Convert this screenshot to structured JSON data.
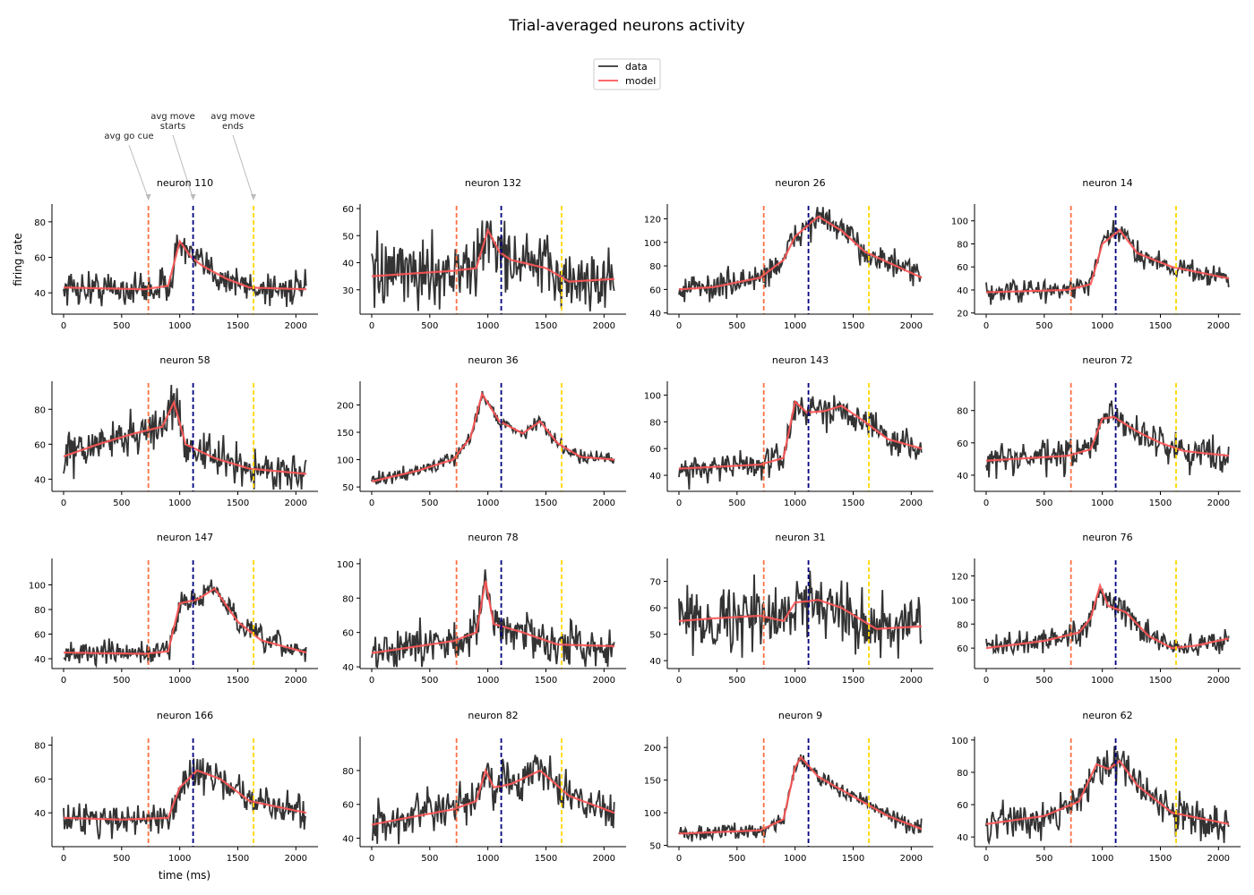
{
  "figure": {
    "title": "Trial-averaged neurons activity",
    "xlabel": "time (ms)",
    "ylabel": "firing rate",
    "legend": {
      "placement": "top-center",
      "entries": [
        {
          "label": "data",
          "color": "#333333"
        },
        {
          "label": "model",
          "color": "#ff5555"
        }
      ]
    },
    "annotations": [
      {
        "text": "avg go cue",
        "event": "go_cue"
      },
      {
        "text": "avg move\nstarts",
        "event": "move_start"
      },
      {
        "text": "avg move\nends",
        "event": "move_end"
      }
    ]
  },
  "chart_data": {
    "type": "line",
    "layout": "4x4 small multiples",
    "shared_x": {
      "label": "time (ms)",
      "range": [
        0,
        2090
      ],
      "ticks": [
        0,
        500,
        1000,
        1500,
        2000
      ]
    },
    "events": [
      {
        "name": "avg go cue",
        "x": 730,
        "color": "#ff7043",
        "style": "dashed"
      },
      {
        "name": "avg move starts",
        "x": 1115,
        "color": "#000080",
        "style": "dashed"
      },
      {
        "name": "avg move ends",
        "x": 1635,
        "color": "#ffd700",
        "style": "dashed"
      }
    ],
    "series_colors": {
      "data": "#333333",
      "model": "#ff5555"
    },
    "grid": false,
    "panels": [
      {
        "title": "neuron 110",
        "ylim": [
          28,
          89
        ],
        "yticks": [
          40,
          60,
          80
        ],
        "noise": 5,
        "model": [
          [
            0,
            43
          ],
          [
            700,
            42
          ],
          [
            900,
            44
          ],
          [
            1000,
            69
          ],
          [
            1100,
            60
          ],
          [
            1200,
            55
          ],
          [
            1400,
            48
          ],
          [
            1600,
            43
          ],
          [
            2090,
            42
          ]
        ]
      },
      {
        "title": "neuron 132",
        "ylim": [
          21,
          61
        ],
        "yticks": [
          30,
          40,
          50,
          60
        ],
        "noise": 6,
        "model": [
          [
            0,
            35
          ],
          [
            700,
            37
          ],
          [
            900,
            38
          ],
          [
            1000,
            52
          ],
          [
            1100,
            44
          ],
          [
            1200,
            41
          ],
          [
            1500,
            38
          ],
          [
            1700,
            33
          ],
          [
            2090,
            34
          ]
        ]
      },
      {
        "title": "neuron 26",
        "ylim": [
          39,
          131
        ],
        "yticks": [
          40,
          60,
          80,
          100,
          120
        ],
        "noise": 6,
        "model": [
          [
            0,
            60
          ],
          [
            300,
            62
          ],
          [
            700,
            70
          ],
          [
            900,
            85
          ],
          [
            1000,
            105
          ],
          [
            1200,
            122
          ],
          [
            1400,
            110
          ],
          [
            1600,
            92
          ],
          [
            2090,
            70
          ]
        ]
      },
      {
        "title": "neuron 14",
        "ylim": [
          19,
          113
        ],
        "yticks": [
          20,
          40,
          60,
          80,
          100
        ],
        "noise": 5,
        "model": [
          [
            0,
            38
          ],
          [
            700,
            40
          ],
          [
            900,
            45
          ],
          [
            1000,
            80
          ],
          [
            1150,
            92
          ],
          [
            1300,
            72
          ],
          [
            1600,
            60
          ],
          [
            2090,
            50
          ]
        ]
      },
      {
        "title": "neuron 58",
        "ylim": [
          33,
          95
        ],
        "yticks": [
          40,
          60,
          80
        ],
        "noise": 6,
        "model": [
          [
            0,
            53
          ],
          [
            300,
            60
          ],
          [
            600,
            66
          ],
          [
            850,
            70
          ],
          [
            950,
            84
          ],
          [
            1050,
            60
          ],
          [
            1300,
            52
          ],
          [
            1600,
            46
          ],
          [
            2090,
            43
          ]
        ]
      },
      {
        "title": "neuron 36",
        "ylim": [
          42,
          240
        ],
        "yticks": [
          50,
          100,
          150,
          200
        ],
        "noise": 6,
        "model": [
          [
            0,
            60
          ],
          [
            400,
            80
          ],
          [
            700,
            100
          ],
          [
            850,
            140
          ],
          [
            950,
            220
          ],
          [
            1100,
            170
          ],
          [
            1300,
            148
          ],
          [
            1450,
            170
          ],
          [
            1600,
            130
          ],
          [
            1800,
            105
          ],
          [
            2090,
            100
          ]
        ]
      },
      {
        "title": "neuron 143",
        "ylim": [
          28,
          109
        ],
        "yticks": [
          40,
          60,
          80,
          100
        ],
        "noise": 6,
        "model": [
          [
            0,
            45
          ],
          [
            700,
            48
          ],
          [
            900,
            53
          ],
          [
            1000,
            95
          ],
          [
            1100,
            87
          ],
          [
            1250,
            88
          ],
          [
            1400,
            92
          ],
          [
            1600,
            80
          ],
          [
            1800,
            67
          ],
          [
            2090,
            60
          ]
        ]
      },
      {
        "title": "neuron 72",
        "ylim": [
          30,
          97
        ],
        "yticks": [
          40,
          60,
          80
        ],
        "noise": 5,
        "model": [
          [
            0,
            49
          ],
          [
            700,
            52
          ],
          [
            900,
            56
          ],
          [
            1000,
            75
          ],
          [
            1100,
            76
          ],
          [
            1300,
            67
          ],
          [
            1500,
            60
          ],
          [
            1700,
            55
          ],
          [
            2090,
            52
          ]
        ]
      },
      {
        "title": "neuron 147",
        "ylim": [
          32,
          120
        ],
        "yticks": [
          40,
          60,
          80,
          100
        ],
        "noise": 5,
        "model": [
          [
            0,
            45
          ],
          [
            700,
            44
          ],
          [
            900,
            46
          ],
          [
            1000,
            85
          ],
          [
            1150,
            88
          ],
          [
            1300,
            97
          ],
          [
            1500,
            70
          ],
          [
            1700,
            55
          ],
          [
            2090,
            45
          ]
        ]
      },
      {
        "title": "neuron 78",
        "ylim": [
          39,
          102
        ],
        "yticks": [
          40,
          60,
          80,
          100
        ],
        "noise": 6,
        "model": [
          [
            0,
            48
          ],
          [
            700,
            55
          ],
          [
            900,
            60
          ],
          [
            980,
            90
          ],
          [
            1050,
            65
          ],
          [
            1300,
            60
          ],
          [
            1600,
            53
          ],
          [
            2090,
            52
          ]
        ]
      },
      {
        "title": "neuron 31",
        "ylim": [
          37,
          78
        ],
        "yticks": [
          40,
          50,
          60,
          70
        ],
        "noise": 6,
        "model": [
          [
            0,
            55
          ],
          [
            300,
            56
          ],
          [
            700,
            57
          ],
          [
            900,
            55
          ],
          [
            1000,
            62
          ],
          [
            1200,
            63
          ],
          [
            1400,
            60
          ],
          [
            1700,
            52
          ],
          [
            2090,
            53
          ]
        ]
      },
      {
        "title": "neuron 76",
        "ylim": [
          43,
          133
        ],
        "yticks": [
          60,
          80,
          100,
          120
        ],
        "noise": 5,
        "model": [
          [
            0,
            60
          ],
          [
            500,
            66
          ],
          [
            800,
            73
          ],
          [
            900,
            85
          ],
          [
            980,
            112
          ],
          [
            1050,
            95
          ],
          [
            1200,
            90
          ],
          [
            1400,
            70
          ],
          [
            1600,
            60
          ],
          [
            1800,
            62
          ],
          [
            2090,
            68
          ]
        ]
      },
      {
        "title": "neuron 166",
        "ylim": [
          20,
          84
        ],
        "yticks": [
          40,
          60,
          80
        ],
        "noise": 5,
        "model": [
          [
            0,
            37
          ],
          [
            500,
            36
          ],
          [
            900,
            37
          ],
          [
            1000,
            55
          ],
          [
            1150,
            65
          ],
          [
            1350,
            60
          ],
          [
            1600,
            47
          ],
          [
            2090,
            40
          ]
        ]
      },
      {
        "title": "neuron 82",
        "ylim": [
          35,
          99
        ],
        "yticks": [
          40,
          60,
          80
        ],
        "noise": 6,
        "model": [
          [
            0,
            48
          ],
          [
            300,
            52
          ],
          [
            700,
            57
          ],
          [
            900,
            62
          ],
          [
            980,
            80
          ],
          [
            1050,
            70
          ],
          [
            1200,
            72
          ],
          [
            1450,
            80
          ],
          [
            1700,
            65
          ],
          [
            2090,
            55
          ]
        ]
      },
      {
        "title": "neuron 9",
        "ylim": [
          48,
          214
        ],
        "yticks": [
          50,
          100,
          150,
          200
        ],
        "noise": 6,
        "model": [
          [
            0,
            68
          ],
          [
            700,
            73
          ],
          [
            900,
            90
          ],
          [
            1000,
            170
          ],
          [
            1050,
            185
          ],
          [
            1200,
            155
          ],
          [
            1500,
            125
          ],
          [
            1800,
            95
          ],
          [
            2090,
            75
          ]
        ]
      },
      {
        "title": "neuron 62",
        "ylim": [
          34,
          101
        ],
        "yticks": [
          40,
          60,
          80,
          100
        ],
        "noise": 6,
        "model": [
          [
            0,
            48
          ],
          [
            500,
            53
          ],
          [
            800,
            62
          ],
          [
            950,
            85
          ],
          [
            1050,
            82
          ],
          [
            1150,
            87
          ],
          [
            1300,
            72
          ],
          [
            1600,
            55
          ],
          [
            2090,
            48
          ]
        ]
      }
    ]
  }
}
